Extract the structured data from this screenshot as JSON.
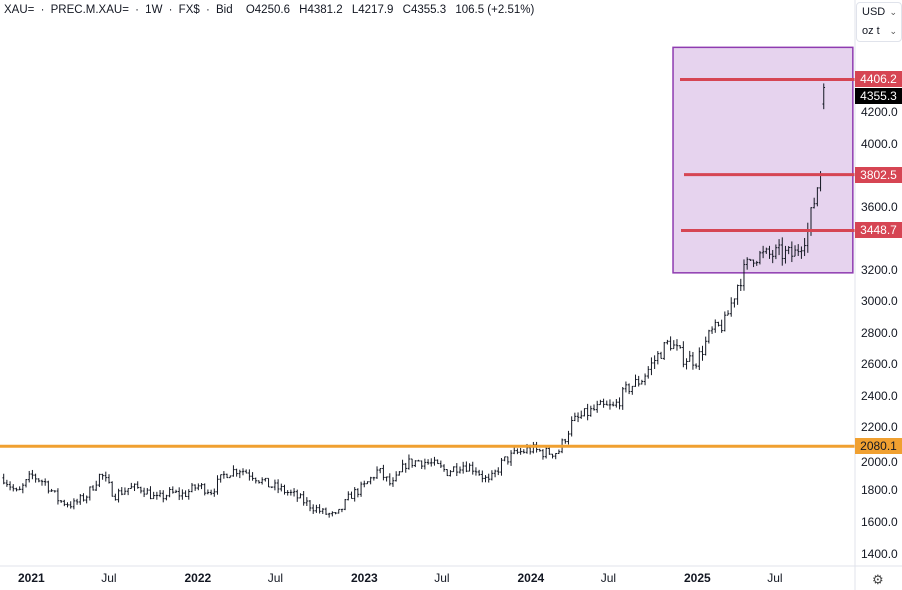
{
  "header": {
    "symbol": "XAU=",
    "source": "PREC.M.XAU=",
    "interval": "1W",
    "exchange": "FX$",
    "price_type": "Bid",
    "open": "O4250.6",
    "high": "H4381.2",
    "low": "L4217.9",
    "close": "C4355.3",
    "change": "106.5 (+2.51%)",
    "sep": "·"
  },
  "axis_controls": {
    "currency": "USD",
    "unit": "oz t"
  },
  "y_axis_ticks": [
    "4200.0",
    "4000.0",
    "3600.0",
    "3200.0",
    "3000.0",
    "2800.0",
    "2600.0",
    "2400.0",
    "2200.0",
    "2000.0",
    "1800.0",
    "1600.0",
    "1400.0"
  ],
  "x_axis_ticks": [
    {
      "label": "2021",
      "bold": true,
      "date": 2021.0
    },
    {
      "label": "Jul",
      "bold": false,
      "date": 2021.5
    },
    {
      "label": "2022",
      "bold": true,
      "date": 2022.0
    },
    {
      "label": "Jul",
      "bold": false,
      "date": 2022.5
    },
    {
      "label": "2023",
      "bold": true,
      "date": 2023.0
    },
    {
      "label": "Jul",
      "bold": false,
      "date": 2023.5
    },
    {
      "label": "2024",
      "bold": true,
      "date": 2024.0
    },
    {
      "label": "Jul",
      "bold": false,
      "date": 2024.5
    },
    {
      "label": "2025",
      "bold": true,
      "date": 2025.0
    },
    {
      "label": "Jul",
      "bold": false,
      "date": 2025.5
    }
  ],
  "price_labels": [
    {
      "label": "4406.2",
      "value": 4406.2,
      "color": "#d64553",
      "kind": "level"
    },
    {
      "label": "4355.3",
      "value": 4355.3,
      "color": "#000000",
      "kind": "last"
    },
    {
      "label": "3802.5",
      "value": 3802.5,
      "color": "#d64553",
      "kind": "level"
    },
    {
      "label": "3448.7",
      "value": 3448.7,
      "color": "#d64553",
      "kind": "level"
    },
    {
      "label": "2080.1",
      "value": 2080.1,
      "color": "#f0a030",
      "kind": "level"
    }
  ],
  "colors": {
    "bars": "#131722",
    "zone_fill": "#e6d3ee",
    "zone_border": "#8e3bb0",
    "resistance": "#d64553",
    "support": "#f0a030"
  },
  "zone": {
    "price_top": 4610,
    "price_bottom": 3180,
    "date_start": 2024.85,
    "date_end": 2025.93
  },
  "chart_data": {
    "type": "ohlc",
    "interval": "weekly",
    "start_date": 2020.83,
    "monthly_closes": [
      1880,
      1776,
      1895,
      1850,
      1734,
      1708,
      1769,
      1906,
      1770,
      1814,
      1814,
      1743,
      1783,
      1774,
      1829,
      1797,
      1909,
      1937,
      1897,
      1837,
      1807,
      1766,
      1711,
      1660,
      1633,
      1768,
      1824,
      1928,
      1827,
      1969,
      1990,
      1963,
      1919,
      1965,
      1940,
      1849,
      1983,
      2036,
      2063,
      2039,
      2044,
      2230,
      2286,
      2327,
      2326,
      2447,
      2503,
      2634,
      2744,
      2643,
      2625,
      2798,
      2858,
      3124,
      3289,
      3289,
      3303,
      3290,
      3448,
      3858,
      4355
    ],
    "last_bar": {
      "open": 4250.6,
      "high": 4381.2,
      "low": 4217.9,
      "close": 4355.3
    },
    "ylim": [
      1300,
      4800
    ]
  }
}
